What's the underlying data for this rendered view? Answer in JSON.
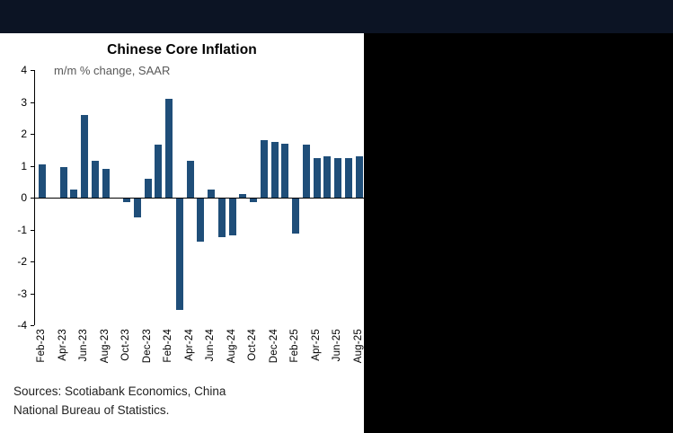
{
  "colors": {
    "top_bar": "#0c1424",
    "right_panel": "#000000",
    "bar": "#1F4E79",
    "subtitle_text": "#595959",
    "axis": "#000000"
  },
  "source": {
    "line1": "Sources: Scotiabank Economics, China",
    "line2": "National Bureau of Statistics."
  },
  "chart_data": {
    "type": "bar",
    "title": "Chinese Core Inflation",
    "subtitle": "m/m % change, SAAR",
    "x": [
      "Feb-23",
      "Mar-23",
      "Apr-23",
      "May-23",
      "Jun-23",
      "Jul-23",
      "Aug-23",
      "Sep-23",
      "Oct-23",
      "Nov-23",
      "Dec-23",
      "Jan-24",
      "Feb-24",
      "Mar-24",
      "Apr-24",
      "May-24",
      "Jun-24",
      "Jul-24",
      "Aug-24",
      "Sep-24",
      "Oct-24",
      "Nov-24",
      "Dec-24",
      "Jan-25",
      "Feb-25",
      "Mar-25",
      "Apr-25",
      "May-25",
      "Jun-25",
      "Jul-25",
      "Aug-25"
    ],
    "values": [
      1.05,
      0.0,
      0.95,
      0.25,
      2.6,
      1.15,
      0.9,
      0.0,
      -0.1,
      -0.6,
      0.6,
      1.65,
      3.1,
      -3.5,
      1.15,
      -1.35,
      0.25,
      -1.2,
      -1.15,
      0.1,
      -0.1,
      1.8,
      1.75,
      1.7,
      -1.1,
      1.65,
      1.25,
      1.3,
      1.25,
      1.25,
      1.3
    ],
    "x_tick_labels": [
      "Feb-23",
      "Apr-23",
      "Jun-23",
      "Aug-23",
      "Oct-23",
      "Dec-23",
      "Feb-24",
      "Apr-24",
      "Jun-24",
      "Aug-24",
      "Oct-24",
      "Dec-24",
      "Feb-25",
      "Apr-25",
      "Jun-25",
      "Aug-25"
    ],
    "x_tick_step": 2,
    "y_ticks": [
      4,
      3,
      2,
      1,
      0,
      -1,
      -2,
      -3,
      -4
    ],
    "ylim": [
      -4,
      4
    ],
    "baseline": 0,
    "grid": false,
    "legend": false,
    "bar_color": "#1F4E79"
  }
}
